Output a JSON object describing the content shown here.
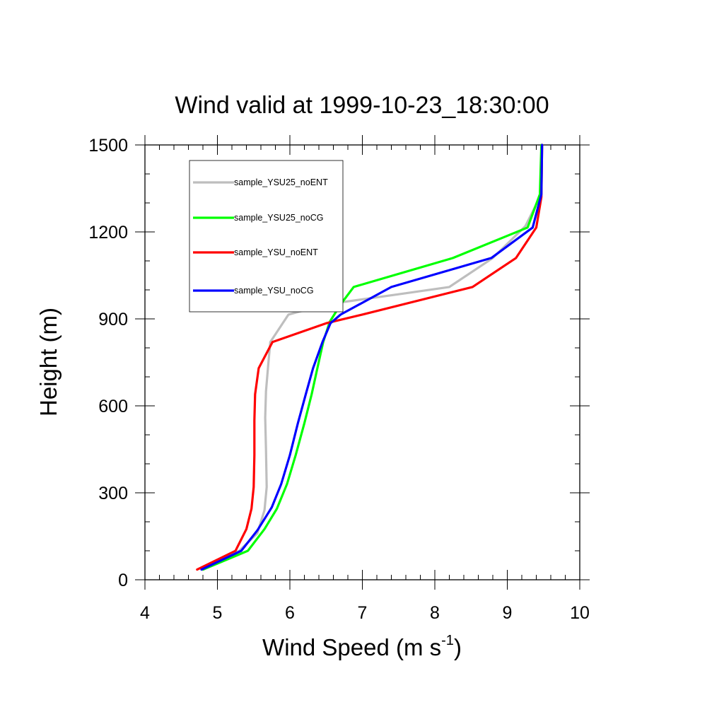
{
  "chart_data": {
    "type": "line",
    "title": "Wind valid at 1999-10-23_18:30:00",
    "xlabel": "Wind Speed (m s",
    "xlabel_sup": "-1",
    "xlabel_end": ")",
    "ylabel": "Height (m)",
    "xlim": [
      4,
      10
    ],
    "ylim": [
      0,
      1500
    ],
    "xticks": [
      4,
      5,
      6,
      7,
      8,
      9,
      10
    ],
    "yticks": [
      0,
      300,
      600,
      900,
      1200,
      1500
    ],
    "legend_position": "top-left",
    "series": [
      {
        "name": "sample_YSU25_noENT",
        "color": "#bebebe",
        "points": [
          [
            4.8,
            35
          ],
          [
            5.3,
            100
          ],
          [
            5.55,
            160
          ],
          [
            5.65,
            240
          ],
          [
            5.68,
            320
          ],
          [
            5.67,
            450
          ],
          [
            5.66,
            560
          ],
          [
            5.67,
            650
          ],
          [
            5.7,
            740
          ],
          [
            5.73,
            820
          ],
          [
            5.98,
            915
          ],
          [
            6.5,
            950
          ],
          [
            7.5,
            985
          ],
          [
            8.2,
            1010
          ],
          [
            8.8,
            1110
          ],
          [
            9.25,
            1220
          ],
          [
            9.45,
            1320
          ],
          [
            9.48,
            1500
          ]
        ]
      },
      {
        "name": "sample_YSU25_noCG",
        "color": "#00ff00",
        "points": [
          [
            4.8,
            35
          ],
          [
            5.42,
            100
          ],
          [
            5.65,
            175
          ],
          [
            5.82,
            245
          ],
          [
            5.96,
            330
          ],
          [
            6.08,
            430
          ],
          [
            6.2,
            540
          ],
          [
            6.3,
            640
          ],
          [
            6.38,
            730
          ],
          [
            6.46,
            820
          ],
          [
            6.55,
            890
          ],
          [
            6.7,
            950
          ],
          [
            6.88,
            1010
          ],
          [
            8.25,
            1110
          ],
          [
            9.28,
            1215
          ],
          [
            9.45,
            1330
          ],
          [
            9.47,
            1500
          ]
        ]
      },
      {
        "name": "sample_YSU_noENT",
        "color": "#ff0000",
        "points": [
          [
            4.72,
            35
          ],
          [
            5.25,
            100
          ],
          [
            5.4,
            175
          ],
          [
            5.47,
            245
          ],
          [
            5.5,
            320
          ],
          [
            5.51,
            430
          ],
          [
            5.51,
            550
          ],
          [
            5.52,
            640
          ],
          [
            5.57,
            730
          ],
          [
            5.76,
            820
          ],
          [
            6.5,
            885
          ],
          [
            7.0,
            915
          ],
          [
            8.52,
            1010
          ],
          [
            9.12,
            1110
          ],
          [
            9.4,
            1215
          ],
          [
            9.47,
            1320
          ],
          [
            9.48,
            1500
          ]
        ]
      },
      {
        "name": "sample_YSU_noCG",
        "color": "#0000ff",
        "points": [
          [
            4.78,
            35
          ],
          [
            5.33,
            100
          ],
          [
            5.55,
            170
          ],
          [
            5.75,
            250
          ],
          [
            5.88,
            330
          ],
          [
            6.0,
            430
          ],
          [
            6.11,
            540
          ],
          [
            6.22,
            640
          ],
          [
            6.32,
            730
          ],
          [
            6.45,
            820
          ],
          [
            6.56,
            885
          ],
          [
            6.7,
            915
          ],
          [
            7.4,
            1010
          ],
          [
            8.78,
            1110
          ],
          [
            9.35,
            1215
          ],
          [
            9.47,
            1330
          ],
          [
            9.48,
            1500
          ]
        ]
      }
    ]
  }
}
